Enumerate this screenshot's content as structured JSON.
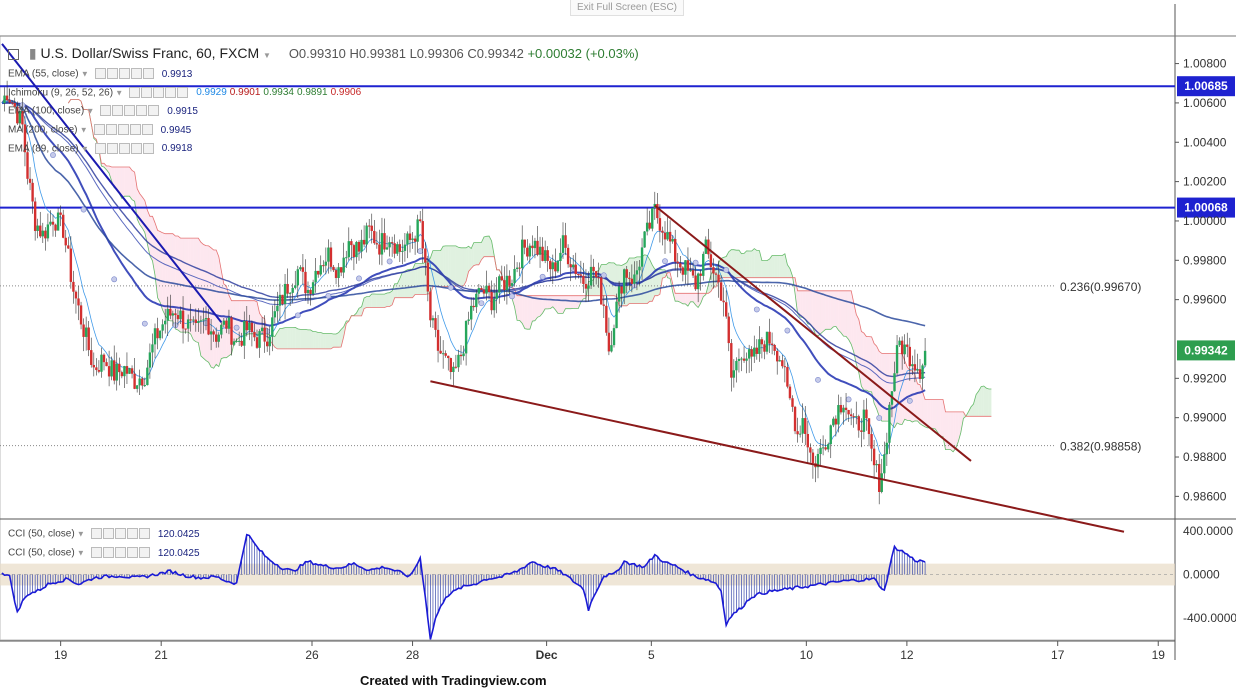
{
  "ui": {
    "exit_fullscreen": "Exit Full Screen (ESC)",
    "credit": "Created with Tradingview.com"
  },
  "header": {
    "symbol": "U.S. Dollar/Swiss Franc, 60, FXCM",
    "open": "O0.99310",
    "high": "H0.99381",
    "low": "L0.99306",
    "close": "C0.99342",
    "change": "+0.00032 (+0.03%)"
  },
  "indicators": [
    {
      "label": "EMA (55, close)",
      "values": [
        {
          "v": "0.9913",
          "c": "#1a237e"
        }
      ]
    },
    {
      "label": "Ichimoku (9, 26, 52, 26)",
      "values": [
        {
          "v": "0.9929",
          "c": "#1e88e5"
        },
        {
          "v": "0.9901",
          "c": "#b71c1c"
        },
        {
          "v": "0.9934",
          "c": "#2e7d32"
        },
        {
          "v": "0.9891",
          "c": "#2e7d32"
        },
        {
          "v": "0.9906",
          "c": "#c62828"
        }
      ]
    },
    {
      "label": "EMA (100, close)",
      "values": [
        {
          "v": "0.9915",
          "c": "#1a237e"
        }
      ]
    },
    {
      "label": "MA (200, close)",
      "values": [
        {
          "v": "0.9945",
          "c": "#1a237e"
        }
      ]
    },
    {
      "label": "EMA (89, close)",
      "values": [
        {
          "v": "0.9918",
          "c": "#1a237e"
        }
      ]
    }
  ],
  "cci_labels": [
    {
      "label": "CCI (50, close)",
      "value": "120.0425"
    },
    {
      "label": "CCI (50, close)",
      "value": "120.0425"
    }
  ],
  "colors": {
    "up": "#26a65b",
    "down": "#d32f2f",
    "hline": "#1e22d0",
    "trend": "#8b1a1a",
    "ma": "#2b4a9c",
    "cloud_green": "#a5d6a7",
    "cloud_red": "#f8bbd0"
  },
  "chart_data": {
    "type": "candlestick",
    "y_axis": {
      "range": [
        0.9849,
        1.0093
      ],
      "ticks": [
        "1.00800",
        "1.00600",
        "1.00400",
        "1.00200",
        "1.00000",
        "0.99800",
        "0.99600",
        "0.99400",
        "0.99200",
        "0.99000",
        "0.98800",
        "0.98600"
      ],
      "tick_values": [
        1.008,
        1.006,
        1.004,
        1.002,
        1.0,
        0.998,
        0.996,
        0.994,
        0.992,
        0.99,
        0.988,
        0.986
      ]
    },
    "x_axis": {
      "ticks": [
        "19",
        "21",
        "26",
        "28",
        "Dec",
        "5",
        "10",
        "12",
        "17",
        "19"
      ]
    },
    "horizontal_lines": [
      {
        "value": 1.00685,
        "label": "1.00685"
      },
      {
        "value": 1.00068,
        "label": "1.00068"
      }
    ],
    "fib_levels": [
      {
        "value": 0.9967,
        "label": "0.236(0.99670)"
      },
      {
        "value": 0.98858,
        "label": "0.382(0.98858)"
      }
    ],
    "last_price": {
      "value": 0.99342,
      "label": "0.99342"
    },
    "price_path": [
      [
        0,
        1.006
      ],
      [
        2,
        1.0066
      ],
      [
        5,
        1.0058
      ],
      [
        8,
        1.0048
      ],
      [
        10,
        1.0024
      ],
      [
        13,
        1.0
      ],
      [
        16,
        0.9993
      ],
      [
        20,
        1.0002
      ],
      [
        24,
        0.9996
      ],
      [
        28,
        0.9965
      ],
      [
        32,
        0.9945
      ],
      [
        36,
        0.9925
      ],
      [
        40,
        0.993
      ],
      [
        44,
        0.9922
      ],
      [
        48,
        0.9925
      ],
      [
        52,
        0.9919
      ],
      [
        56,
        0.9922
      ],
      [
        60,
        0.994
      ],
      [
        64,
        0.995
      ],
      [
        68,
        0.9955
      ],
      [
        72,
        0.9948
      ],
      [
        76,
        0.9943
      ],
      [
        80,
        0.995
      ],
      [
        84,
        0.9942
      ],
      [
        88,
        0.9948
      ],
      [
        92,
        0.9938
      ],
      [
        96,
        0.9945
      ],
      [
        100,
        0.994
      ],
      [
        104,
        0.9942
      ],
      [
        108,
        0.9955
      ],
      [
        112,
        0.9967
      ],
      [
        116,
        0.9975
      ],
      [
        120,
        0.9965
      ],
      [
        124,
        0.9978
      ],
      [
        128,
        0.9983
      ],
      [
        132,
        0.9975
      ],
      [
        136,
        0.999
      ],
      [
        140,
        0.9985
      ],
      [
        144,
        0.9995
      ],
      [
        148,
        0.9988
      ],
      [
        152,
        0.9993
      ],
      [
        156,
        0.9985
      ],
      [
        160,
        0.999
      ],
      [
        164,
        0.9998
      ],
      [
        168,
        0.995
      ],
      [
        171,
        0.9935
      ],
      [
        174,
        0.9928
      ],
      [
        177,
        0.992
      ],
      [
        180,
        0.9932
      ],
      [
        184,
        0.9955
      ],
      [
        188,
        0.9965
      ],
      [
        192,
        0.996
      ],
      [
        196,
        0.9968
      ],
      [
        200,
        0.9972
      ],
      [
        204,
        0.9985
      ],
      [
        208,
        0.999
      ],
      [
        212,
        0.9982
      ],
      [
        216,
        0.9975
      ],
      [
        220,
        0.9988
      ],
      [
        224,
        0.9978
      ],
      [
        228,
        0.997
      ],
      [
        232,
        0.9975
      ],
      [
        236,
        0.9958
      ],
      [
        238,
        0.9935
      ],
      [
        240,
        0.995
      ],
      [
        244,
        0.9975
      ],
      [
        248,
        0.997
      ],
      [
        252,
        0.999
      ],
      [
        256,
        1.0005
      ],
      [
        260,
        0.9995
      ],
      [
        264,
        0.9982
      ],
      [
        268,
        0.9975
      ],
      [
        272,
        0.9968
      ],
      [
        276,
        0.9985
      ],
      [
        280,
        0.9972
      ],
      [
        283,
        0.996
      ],
      [
        285,
        0.9935
      ],
      [
        286,
        0.992
      ],
      [
        290,
        0.9935
      ],
      [
        294,
        0.9928
      ],
      [
        298,
        0.9938
      ],
      [
        302,
        0.994
      ],
      [
        306,
        0.9928
      ],
      [
        308,
        0.9912
      ],
      [
        310,
        0.9905
      ],
      [
        312,
        0.9892
      ],
      [
        314,
        0.99
      ],
      [
        316,
        0.9888
      ],
      [
        318,
        0.9876
      ],
      [
        322,
        0.9885
      ],
      [
        326,
        0.99
      ],
      [
        330,
        0.991
      ],
      [
        334,
        0.9895
      ],
      [
        338,
        0.99
      ],
      [
        342,
        0.9875
      ],
      [
        344,
        0.9868
      ],
      [
        346,
        0.988
      ],
      [
        348,
        0.9905
      ],
      [
        350,
        0.9925
      ],
      [
        352,
        0.9938
      ],
      [
        356,
        0.9932
      ],
      [
        360,
        0.9925
      ],
      [
        362,
        0.9934
      ]
    ],
    "cci_axis": {
      "ticks": [
        "400.0000",
        "0.0000",
        "-400.0000"
      ],
      "tick_values": [
        400,
        0,
        -400
      ]
    },
    "cci_path": [
      [
        0,
        20
      ],
      [
        3,
        -20
      ],
      [
        6,
        -350
      ],
      [
        8,
        -250
      ],
      [
        10,
        -180
      ],
      [
        14,
        -150
      ],
      [
        18,
        -90
      ],
      [
        22,
        -60
      ],
      [
        26,
        -40
      ],
      [
        30,
        -90
      ],
      [
        36,
        -30
      ],
      [
        40,
        -20
      ],
      [
        46,
        -10
      ],
      [
        52,
        -30
      ],
      [
        56,
        -20
      ],
      [
        62,
        10
      ],
      [
        66,
        30
      ],
      [
        72,
        -10
      ],
      [
        78,
        -30
      ],
      [
        84,
        -20
      ],
      [
        88,
        -60
      ],
      [
        92,
        -80
      ],
      [
        96,
        380
      ],
      [
        100,
        250
      ],
      [
        104,
        150
      ],
      [
        110,
        60
      ],
      [
        114,
        30
      ],
      [
        120,
        120
      ],
      [
        126,
        80
      ],
      [
        132,
        60
      ],
      [
        138,
        100
      ],
      [
        144,
        40
      ],
      [
        150,
        70
      ],
      [
        156,
        20
      ],
      [
        160,
        -20
      ],
      [
        164,
        150
      ],
      [
        166,
        -200
      ],
      [
        168,
        -600
      ],
      [
        170,
        -400
      ],
      [
        174,
        -200
      ],
      [
        180,
        -120
      ],
      [
        186,
        -80
      ],
      [
        190,
        -40
      ],
      [
        196,
        -20
      ],
      [
        202,
        30
      ],
      [
        208,
        120
      ],
      [
        212,
        80
      ],
      [
        216,
        60
      ],
      [
        220,
        10
      ],
      [
        224,
        -60
      ],
      [
        228,
        -130
      ],
      [
        230,
        -320
      ],
      [
        232,
        -200
      ],
      [
        236,
        -10
      ],
      [
        240,
        0
      ],
      [
        244,
        120
      ],
      [
        248,
        90
      ],
      [
        252,
        70
      ],
      [
        256,
        180
      ],
      [
        260,
        110
      ],
      [
        264,
        80
      ],
      [
        268,
        30
      ],
      [
        272,
        -20
      ],
      [
        276,
        -40
      ],
      [
        280,
        -80
      ],
      [
        282,
        -150
      ],
      [
        284,
        -450
      ],
      [
        286,
        -380
      ],
      [
        290,
        -300
      ],
      [
        294,
        -200
      ],
      [
        300,
        -160
      ],
      [
        306,
        -140
      ],
      [
        312,
        -120
      ],
      [
        318,
        -100
      ],
      [
        324,
        -80
      ],
      [
        330,
        -60
      ],
      [
        336,
        -50
      ],
      [
        342,
        -40
      ],
      [
        346,
        -150
      ],
      [
        348,
        60
      ],
      [
        350,
        250
      ],
      [
        354,
        200
      ],
      [
        358,
        130
      ],
      [
        362,
        120
      ]
    ]
  }
}
